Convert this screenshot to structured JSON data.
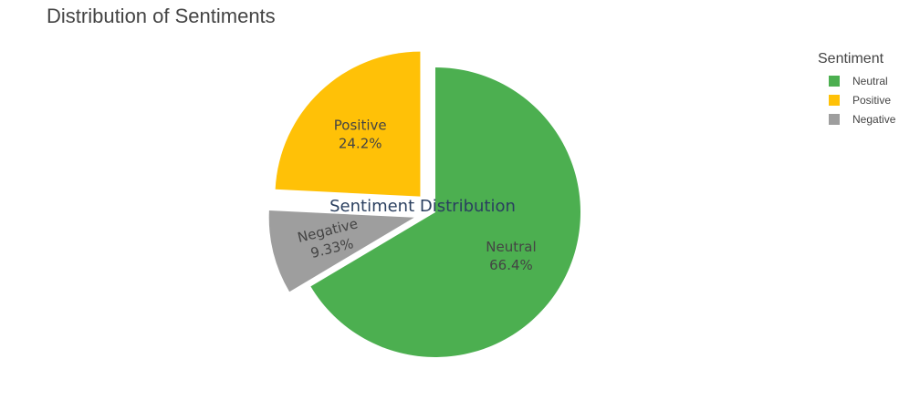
{
  "chart_data": {
    "type": "pie",
    "title": "Distribution of Sentiments",
    "annotation": "Sentiment Distribution",
    "legend_title": "Sentiment",
    "legend_position": "top-right",
    "start_angle_deg": 0,
    "direction": "clockwise",
    "slices": [
      {
        "label": "Neutral",
        "percent": 66.4,
        "percent_label": "66.4%",
        "color": "#4caf50",
        "pulled": false
      },
      {
        "label": "Negative",
        "percent": 9.33,
        "percent_label": "9.33%",
        "color": "#9e9e9e",
        "pulled": true
      },
      {
        "label": "Positive",
        "percent": 24.2,
        "percent_label": "24.2%",
        "color": "#ffc107",
        "pulled": true
      }
    ],
    "legend_order": [
      "Neutral",
      "Positive",
      "Negative"
    ]
  }
}
